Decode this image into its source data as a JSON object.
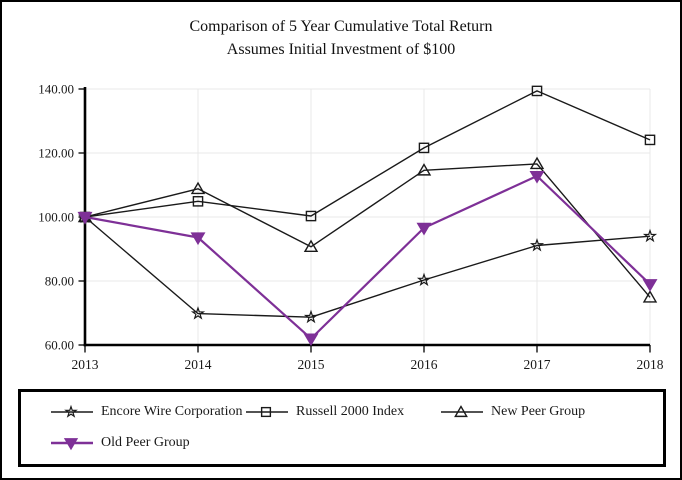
{
  "figure": {
    "background": "#ffffff",
    "border_color": "#000000"
  },
  "title": {
    "line1": "Comparison of 5 Year Cumulative Total Return",
    "line2": "Assumes Initial Investment of $100"
  },
  "chart_data": {
    "type": "line",
    "title": "Comparison of 5 Year Cumulative Total Return",
    "subtitle": "Assumes Initial Investment of $100",
    "xlabel": "",
    "ylabel": "",
    "x": [
      "2013",
      "2014",
      "2015",
      "2016",
      "2017",
      "2018"
    ],
    "ylim": [
      60,
      140
    ],
    "y_ticks": [
      {
        "value": 60,
        "label": "60.00"
      },
      {
        "value": 80,
        "label": "80.00"
      },
      {
        "value": 100,
        "label": "100.00"
      },
      {
        "value": 120,
        "label": "120.00"
      },
      {
        "value": 140,
        "label": "140.00"
      }
    ],
    "grid": true,
    "legend_position": "bottom-box",
    "series": [
      {
        "name": "Encore Wire Corporation",
        "marker": "star-open",
        "color": "#1a1a1a",
        "values": [
          100.0,
          69.8,
          68.7,
          80.3,
          91.1,
          94.0
        ]
      },
      {
        "name": "Russell 2000 Index",
        "marker": "square-open",
        "color": "#1a1a1a",
        "values": [
          100.0,
          104.9,
          100.3,
          121.6,
          139.4,
          124.1
        ]
      },
      {
        "name": "New Peer Group",
        "marker": "triangle-up-open",
        "color": "#1a1a1a",
        "values": [
          100.0,
          108.8,
          90.7,
          114.6,
          116.6,
          74.9
        ]
      },
      {
        "name": "Old Peer Group",
        "marker": "triangle-down-filled",
        "color": "#7e3097",
        "values": [
          100.0,
          93.6,
          62.0,
          96.6,
          112.8,
          79.0
        ]
      }
    ],
    "theme": {
      "axis_color": "#000000",
      "grid_color": "#e8e8e8",
      "text_color": "#1a1a1a",
      "accent_purple": "#7e3097"
    }
  }
}
